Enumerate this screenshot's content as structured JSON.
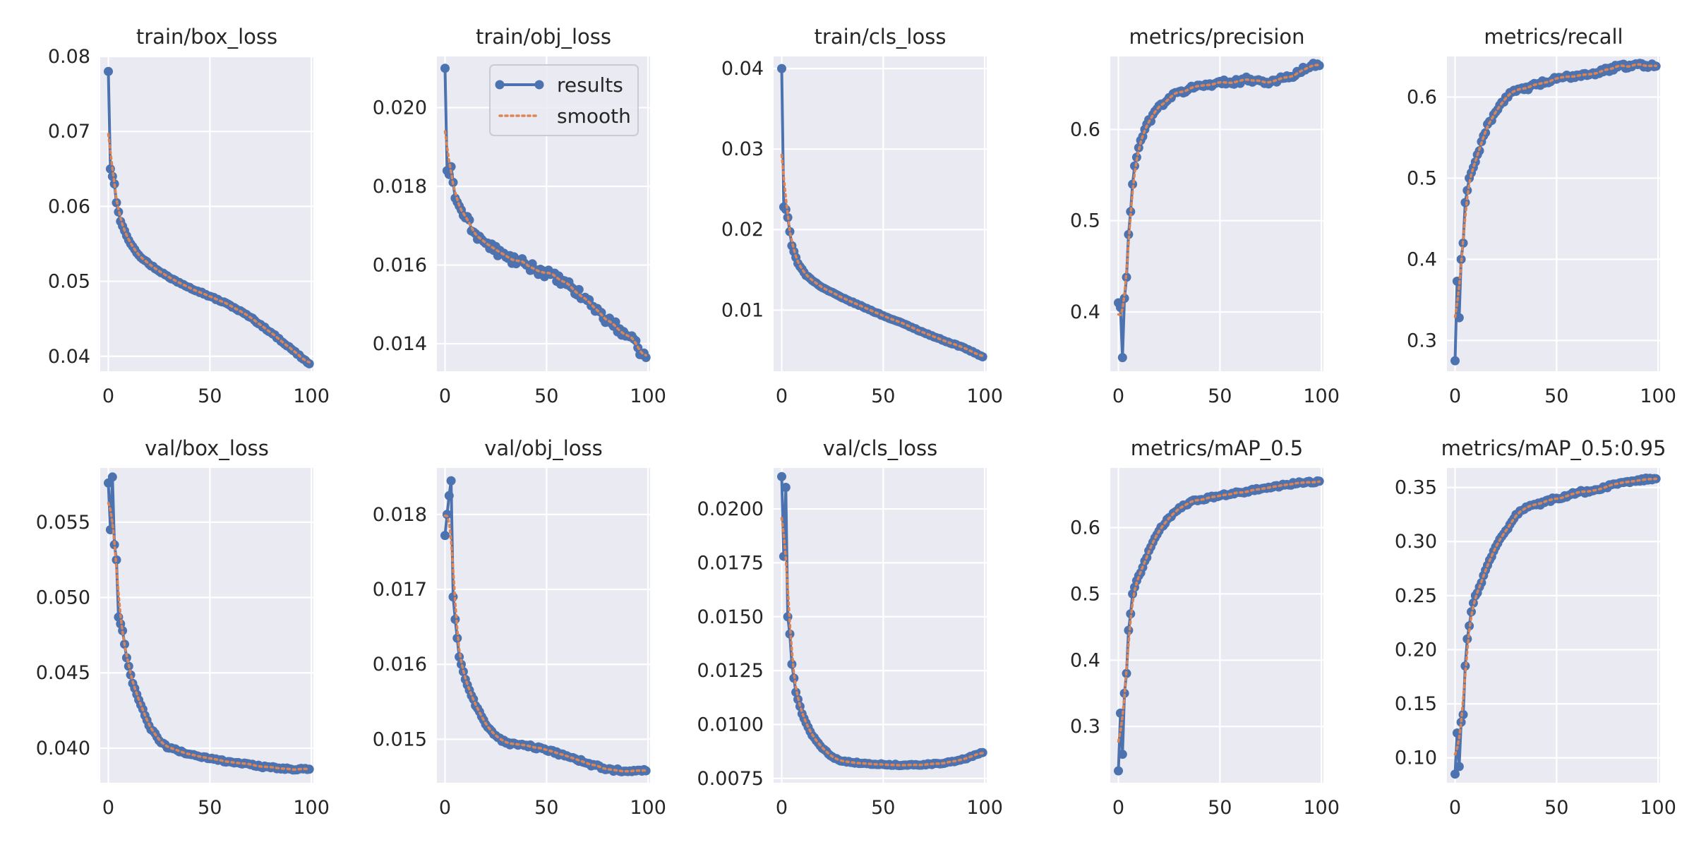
{
  "legend": {
    "results_label": "results",
    "smooth_label": "smooth",
    "results_color": "#4c72b0",
    "smooth_color": "#dd8452"
  },
  "style": {
    "plot_background": "#eaeaf2",
    "grid_color": "#ffffff",
    "text_color": "#262626"
  },
  "chart_data": [
    {
      "type": "line",
      "title": "train/box_loss",
      "xlabel": "",
      "ylabel": "",
      "x": "epoch 0..99",
      "xlim": [
        -4,
        101
      ],
      "ylim": [
        0.038,
        0.08
      ],
      "xticks": [
        0,
        50,
        100
      ],
      "xticklabels": [
        "0",
        "50",
        "100"
      ],
      "yticks": [
        0.04,
        0.05,
        0.06,
        0.07,
        0.08
      ],
      "yticklabels": [
        "0.04",
        "0.05",
        "0.06",
        "0.07",
        "0.08"
      ],
      "anchors": [
        [
          0,
          0.078
        ],
        [
          1,
          0.065
        ],
        [
          2,
          0.064
        ],
        [
          3,
          0.063
        ],
        [
          4,
          0.0605
        ],
        [
          6,
          0.058
        ],
        [
          10,
          0.0555
        ],
        [
          15,
          0.0535
        ],
        [
          20,
          0.0523
        ],
        [
          30,
          0.0505
        ],
        [
          40,
          0.0492
        ],
        [
          50,
          0.048
        ],
        [
          60,
          0.0468
        ],
        [
          70,
          0.0452
        ],
        [
          80,
          0.0432
        ],
        [
          90,
          0.041
        ],
        [
          99,
          0.039
        ]
      ],
      "noise": 0.0001,
      "legend": false
    },
    {
      "type": "line",
      "title": "train/obj_loss",
      "xlabel": "",
      "ylabel": "",
      "xlim": [
        -4,
        101
      ],
      "ylim": [
        0.0133,
        0.0213
      ],
      "xticks": [
        0,
        50,
        100
      ],
      "xticklabels": [
        "0",
        "50",
        "100"
      ],
      "yticks": [
        0.014,
        0.016,
        0.018,
        0.02
      ],
      "yticklabels": [
        "0.014",
        "0.016",
        "0.018",
        "0.020"
      ],
      "anchors": [
        [
          0,
          0.021
        ],
        [
          1,
          0.0184
        ],
        [
          2,
          0.0183
        ],
        [
          3,
          0.0185
        ],
        [
          5,
          0.0177
        ],
        [
          10,
          0.0172
        ],
        [
          15,
          0.0168
        ],
        [
          20,
          0.01655
        ],
        [
          30,
          0.0162
        ],
        [
          40,
          0.016
        ],
        [
          50,
          0.0158
        ],
        [
          60,
          0.0155
        ],
        [
          70,
          0.0151
        ],
        [
          80,
          0.0146
        ],
        [
          90,
          0.0142
        ],
        [
          95,
          0.0139
        ],
        [
          99,
          0.01365
        ]
      ],
      "noise": 0.00012,
      "legend": true
    },
    {
      "type": "line",
      "title": "train/cls_loss",
      "xlabel": "",
      "ylabel": "",
      "xlim": [
        -4,
        101
      ],
      "ylim": [
        0.0024,
        0.0415
      ],
      "xticks": [
        0,
        50,
        100
      ],
      "xticklabels": [
        "0",
        "50",
        "100"
      ],
      "yticks": [
        0.01,
        0.02,
        0.03,
        0.04
      ],
      "yticklabels": [
        "0.01",
        "0.02",
        "0.03",
        "0.04"
      ],
      "anchors": [
        [
          0,
          0.04
        ],
        [
          1,
          0.0228
        ],
        [
          2,
          0.0225
        ],
        [
          3,
          0.0215
        ],
        [
          5,
          0.018
        ],
        [
          8,
          0.0158
        ],
        [
          12,
          0.0143
        ],
        [
          20,
          0.0128
        ],
        [
          30,
          0.0115
        ],
        [
          40,
          0.0104
        ],
        [
          50,
          0.0093
        ],
        [
          60,
          0.0083
        ],
        [
          70,
          0.0072
        ],
        [
          80,
          0.0062
        ],
        [
          90,
          0.0053
        ],
        [
          99,
          0.0042
        ]
      ],
      "noise": 5e-05,
      "legend": false
    },
    {
      "type": "line",
      "title": "metrics/precision",
      "xlabel": "",
      "ylabel": "",
      "xlim": [
        -4,
        101
      ],
      "ylim": [
        0.335,
        0.68
      ],
      "xticks": [
        0,
        50,
        100
      ],
      "xticklabels": [
        "0",
        "50",
        "100"
      ],
      "yticks": [
        0.4,
        0.5,
        0.6
      ],
      "yticklabels": [
        "0.4",
        "0.5",
        "0.6"
      ],
      "anchors": [
        [
          0,
          0.41
        ],
        [
          1,
          0.405
        ],
        [
          2,
          0.35
        ],
        [
          3,
          0.415
        ],
        [
          4,
          0.438
        ],
        [
          5,
          0.485
        ],
        [
          6,
          0.51
        ],
        [
          7,
          0.54
        ],
        [
          8,
          0.56
        ],
        [
          10,
          0.58
        ],
        [
          13,
          0.6
        ],
        [
          18,
          0.62
        ],
        [
          25,
          0.635
        ],
        [
          35,
          0.645
        ],
        [
          45,
          0.65
        ],
        [
          55,
          0.652
        ],
        [
          65,
          0.655
        ],
        [
          75,
          0.652
        ],
        [
          85,
          0.658
        ],
        [
          95,
          0.67
        ],
        [
          99,
          0.67
        ]
      ],
      "noise": 0.003,
      "legend": false
    },
    {
      "type": "line",
      "title": "metrics/recall",
      "xlabel": "",
      "ylabel": "",
      "xlim": [
        -4,
        101
      ],
      "ylim": [
        0.262,
        0.65
      ],
      "xticks": [
        0,
        50,
        100
      ],
      "xticklabels": [
        "0",
        "50",
        "100"
      ],
      "yticks": [
        0.3,
        0.4,
        0.5,
        0.6
      ],
      "yticklabels": [
        "0.3",
        "0.4",
        "0.5",
        "0.6"
      ],
      "anchors": [
        [
          0,
          0.275
        ],
        [
          1,
          0.373
        ],
        [
          2,
          0.328
        ],
        [
          3,
          0.4
        ],
        [
          4,
          0.42
        ],
        [
          5,
          0.47
        ],
        [
          7,
          0.5
        ],
        [
          10,
          0.52
        ],
        [
          13,
          0.545
        ],
        [
          17,
          0.57
        ],
        [
          22,
          0.59
        ],
        [
          25,
          0.6
        ],
        [
          30,
          0.607
        ],
        [
          40,
          0.615
        ],
        [
          50,
          0.622
        ],
        [
          60,
          0.627
        ],
        [
          70,
          0.63
        ],
        [
          80,
          0.637
        ],
        [
          90,
          0.64
        ],
        [
          99,
          0.638
        ]
      ],
      "noise": 0.003,
      "legend": false
    },
    {
      "type": "line",
      "title": "val/box_loss",
      "xlabel": "",
      "ylabel": "",
      "xlim": [
        -4,
        101
      ],
      "ylim": [
        0.0377,
        0.0586
      ],
      "xticks": [
        0,
        50,
        100
      ],
      "xticklabels": [
        "0",
        "50",
        "100"
      ],
      "yticks": [
        0.04,
        0.045,
        0.05,
        0.055
      ],
      "yticklabels": [
        "0.040",
        "0.045",
        "0.050",
        "0.055"
      ],
      "anchors": [
        [
          0,
          0.0576
        ],
        [
          1,
          0.0545
        ],
        [
          2,
          0.058
        ],
        [
          3,
          0.0535
        ],
        [
          4,
          0.0525
        ],
        [
          5,
          0.0487
        ],
        [
          7,
          0.0478
        ],
        [
          9,
          0.046
        ],
        [
          12,
          0.0443
        ],
        [
          15,
          0.0432
        ],
        [
          20,
          0.0415
        ],
        [
          25,
          0.0405
        ],
        [
          30,
          0.04
        ],
        [
          40,
          0.0396
        ],
        [
          50,
          0.0393
        ],
        [
          60,
          0.0391
        ],
        [
          70,
          0.0389
        ],
        [
          80,
          0.0387
        ],
        [
          90,
          0.0386
        ],
        [
          99,
          0.0386
        ]
      ],
      "noise": 8e-05,
      "legend": false
    },
    {
      "type": "line",
      "title": "val/obj_loss",
      "xlabel": "",
      "ylabel": "",
      "xlim": [
        -4,
        101
      ],
      "ylim": [
        0.01442,
        0.01862
      ],
      "xticks": [
        0,
        50,
        100
      ],
      "xticklabels": [
        "0",
        "50",
        "100"
      ],
      "yticks": [
        0.015,
        0.016,
        0.017,
        0.018
      ],
      "yticklabels": [
        "0.015",
        "0.016",
        "0.017",
        "0.018"
      ],
      "anchors": [
        [
          0,
          0.01772
        ],
        [
          1,
          0.018
        ],
        [
          2,
          0.01825
        ],
        [
          3,
          0.01845
        ],
        [
          4,
          0.0169
        ],
        [
          5,
          0.0166
        ],
        [
          7,
          0.0161
        ],
        [
          10,
          0.0158
        ],
        [
          15,
          0.01545
        ],
        [
          20,
          0.0152
        ],
        [
          25,
          0.01505
        ],
        [
          30,
          0.01495
        ],
        [
          40,
          0.01492
        ],
        [
          50,
          0.01485
        ],
        [
          60,
          0.01478
        ],
        [
          70,
          0.01468
        ],
        [
          80,
          0.0146
        ],
        [
          90,
          0.01457
        ],
        [
          99,
          0.01458
        ]
      ],
      "noise": 2e-05,
      "legend": false
    },
    {
      "type": "line",
      "title": "val/cls_loss",
      "xlabel": "",
      "ylabel": "",
      "xlim": [
        -4,
        101
      ],
      "ylim": [
        0.0073,
        0.0219
      ],
      "xticks": [
        0,
        50,
        100
      ],
      "xticklabels": [
        "0",
        "50",
        "100"
      ],
      "yticks": [
        0.0075,
        0.01,
        0.0125,
        0.015,
        0.0175,
        0.02
      ],
      "yticklabels": [
        "0.0075",
        "0.0100",
        "0.0125",
        "0.0150",
        "0.0175",
        "0.0200"
      ],
      "anchors": [
        [
          0,
          0.0215
        ],
        [
          1,
          0.0178
        ],
        [
          2,
          0.021
        ],
        [
          3,
          0.015
        ],
        [
          4,
          0.0142
        ],
        [
          5,
          0.0128
        ],
        [
          7,
          0.0115
        ],
        [
          10,
          0.0105
        ],
        [
          15,
          0.0095
        ],
        [
          20,
          0.0089
        ],
        [
          25,
          0.0085
        ],
        [
          30,
          0.0083
        ],
        [
          40,
          0.0082
        ],
        [
          50,
          0.00815
        ],
        [
          60,
          0.00812
        ],
        [
          70,
          0.00815
        ],
        [
          80,
          0.0082
        ],
        [
          90,
          0.0084
        ],
        [
          99,
          0.0087
        ]
      ],
      "noise": 3e-05,
      "legend": false
    },
    {
      "type": "line",
      "title": "metrics/mAP_0.5",
      "xlabel": "",
      "ylabel": "",
      "xlim": [
        -4,
        101
      ],
      "ylim": [
        0.215,
        0.69
      ],
      "xticks": [
        0,
        50,
        100
      ],
      "xticklabels": [
        "0",
        "50",
        "100"
      ],
      "yticks": [
        0.3,
        0.4,
        0.5,
        0.6
      ],
      "yticklabels": [
        "0.3",
        "0.4",
        "0.5",
        "0.6"
      ],
      "anchors": [
        [
          0,
          0.233
        ],
        [
          1,
          0.32
        ],
        [
          2,
          0.258
        ],
        [
          3,
          0.35
        ],
        [
          4,
          0.38
        ],
        [
          5,
          0.445
        ],
        [
          6,
          0.47
        ],
        [
          7,
          0.5
        ],
        [
          9,
          0.52
        ],
        [
          12,
          0.54
        ],
        [
          15,
          0.565
        ],
        [
          20,
          0.595
        ],
        [
          25,
          0.615
        ],
        [
          30,
          0.63
        ],
        [
          35,
          0.638
        ],
        [
          40,
          0.642
        ],
        [
          50,
          0.648
        ],
        [
          60,
          0.653
        ],
        [
          70,
          0.658
        ],
        [
          80,
          0.663
        ],
        [
          90,
          0.668
        ],
        [
          99,
          0.67
        ]
      ],
      "noise": 0.002,
      "legend": false
    },
    {
      "type": "line",
      "title": "metrics/mAP_0.5:0.95",
      "xlabel": "",
      "ylabel": "",
      "xlim": [
        -4,
        101
      ],
      "ylim": [
        0.077,
        0.368
      ],
      "xticks": [
        0,
        50,
        100
      ],
      "xticklabels": [
        "0",
        "50",
        "100"
      ],
      "yticks": [
        0.1,
        0.15,
        0.2,
        0.25,
        0.3,
        0.35
      ],
      "yticklabels": [
        "0.10",
        "0.15",
        "0.20",
        "0.25",
        "0.30",
        "0.35"
      ],
      "anchors": [
        [
          0,
          0.085
        ],
        [
          1,
          0.123
        ],
        [
          2,
          0.092
        ],
        [
          3,
          0.133
        ],
        [
          4,
          0.14
        ],
        [
          5,
          0.185
        ],
        [
          6,
          0.21
        ],
        [
          7,
          0.222
        ],
        [
          8,
          0.235
        ],
        [
          10,
          0.25
        ],
        [
          13,
          0.262
        ],
        [
          16,
          0.278
        ],
        [
          20,
          0.295
        ],
        [
          25,
          0.31
        ],
        [
          30,
          0.325
        ],
        [
          35,
          0.332
        ],
        [
          40,
          0.334
        ],
        [
          50,
          0.34
        ],
        [
          60,
          0.345
        ],
        [
          70,
          0.348
        ],
        [
          80,
          0.353
        ],
        [
          90,
          0.357
        ],
        [
          99,
          0.358
        ]
      ],
      "noise": 0.0015,
      "legend": false
    }
  ]
}
